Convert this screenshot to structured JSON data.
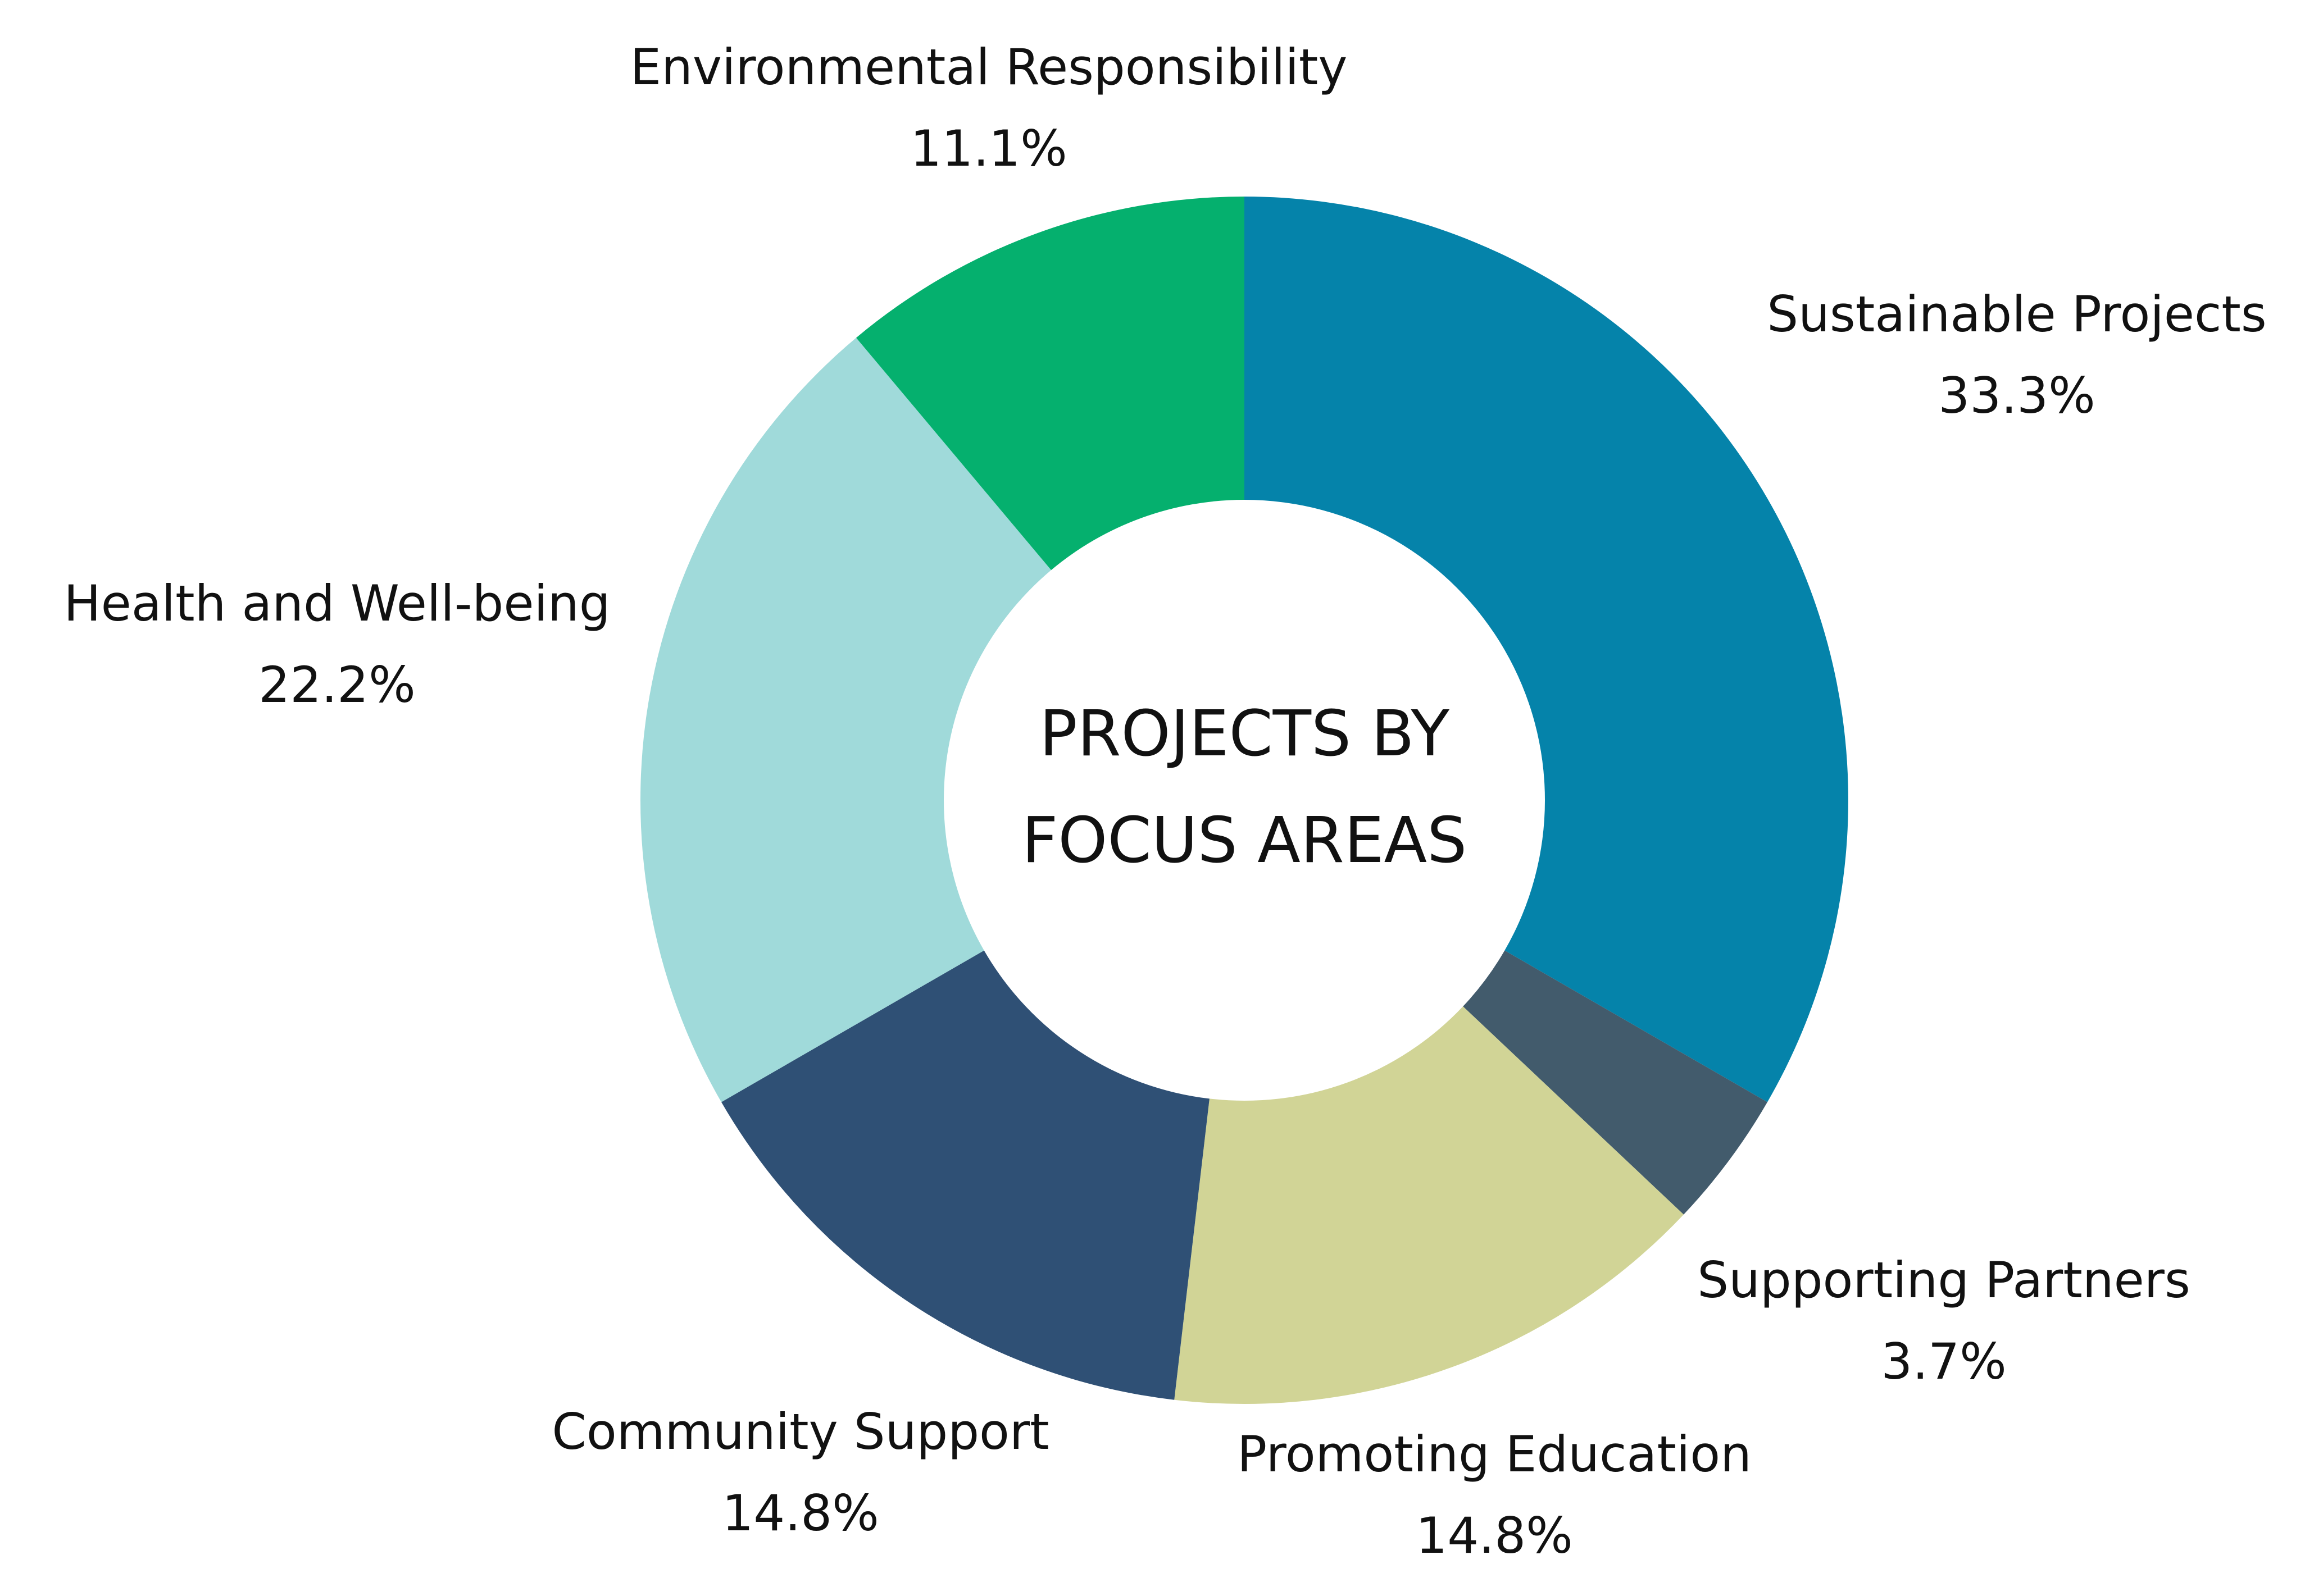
{
  "chart_data": {
    "type": "pie",
    "variant": "donut",
    "title_lines": [
      "PROJECTS BY",
      "FOCUS AREAS"
    ],
    "slices": [
      {
        "label": "Sustainable Projects",
        "value": 33.3,
        "value_label": "33.3%",
        "color": "#0583AA"
      },
      {
        "label": "Supporting Partners",
        "value": 3.7,
        "value_label": "3.7%",
        "color": "#425B6C"
      },
      {
        "label": "Promoting Education",
        "value": 14.8,
        "value_label": "14.8%",
        "color": "#D1D496"
      },
      {
        "label": "Community Support",
        "value": 14.8,
        "value_label": "14.8%",
        "color": "#2F5075"
      },
      {
        "label": "Health and Well-being",
        "value": 22.2,
        "value_label": "22.2%",
        "color": "#A0DADA"
      },
      {
        "label": "Environmental Responsibility",
        "value": 11.1,
        "value_label": "11.1%",
        "color": "#05B06E"
      }
    ]
  }
}
